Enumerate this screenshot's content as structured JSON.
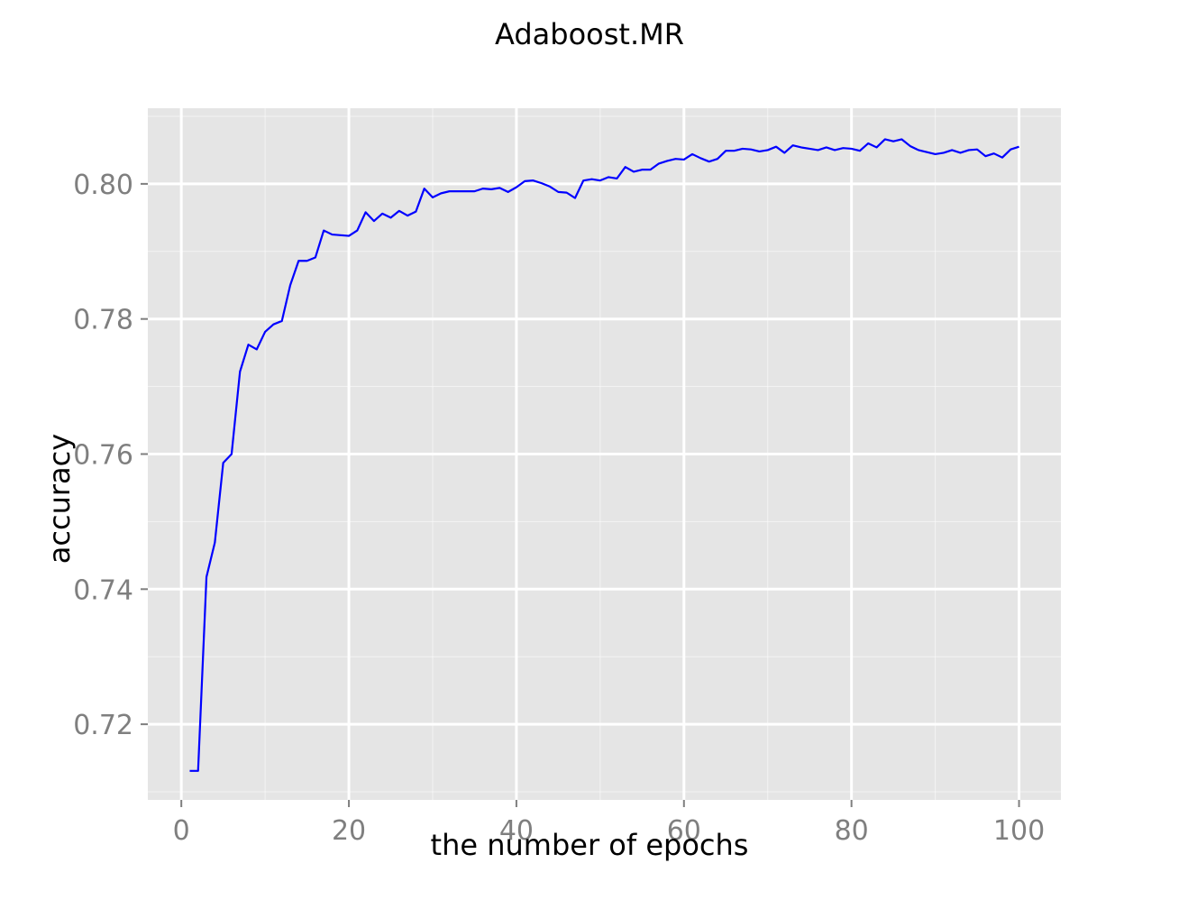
{
  "chart_data": {
    "type": "line",
    "title": "Adaboost.MR",
    "xlabel": "the number of epochs",
    "ylabel": "accuracy",
    "xlim": [
      -4,
      105
    ],
    "ylim": [
      0.7088,
      0.8112
    ],
    "xticks": [
      0,
      20,
      40,
      60,
      80,
      100
    ],
    "xtick_labels": [
      "0",
      "20",
      "40",
      "60",
      "80",
      "100"
    ],
    "yticks": [
      0.72,
      0.74,
      0.76,
      0.78,
      0.8
    ],
    "ytick_labels": [
      "0.72",
      "0.74",
      "0.76",
      "0.78",
      "0.80"
    ],
    "grid": true,
    "legend": "none",
    "colors": {
      "panel": "#e5e5e5",
      "grid": "#ffffff",
      "line": "#0000ff"
    },
    "series": [
      {
        "x": [
          1,
          2,
          3,
          4,
          5,
          6,
          7,
          8,
          9,
          10,
          11,
          12,
          13,
          14,
          15,
          16,
          17,
          18,
          19,
          20,
          21,
          22,
          23,
          24,
          25,
          26,
          27,
          28,
          29,
          30,
          31,
          32,
          33,
          34,
          35,
          36,
          37,
          38,
          39,
          40,
          41,
          42,
          43,
          44,
          45,
          46,
          47,
          48,
          49,
          50,
          51,
          52,
          53,
          54,
          55,
          56,
          57,
          58,
          59,
          60,
          61,
          62,
          63,
          64,
          65,
          66,
          67,
          68,
          69,
          70,
          71,
          72,
          73,
          74,
          75,
          76,
          77,
          78,
          79,
          80,
          81,
          82,
          83,
          84,
          85,
          86,
          87,
          88,
          89,
          90,
          91,
          92,
          93,
          94,
          95,
          96,
          97,
          98,
          99,
          100
        ],
        "values": [
          0.7131,
          0.7131,
          0.7418,
          0.7469,
          0.7587,
          0.76,
          0.7722,
          0.7762,
          0.7755,
          0.7781,
          0.7792,
          0.7797,
          0.785,
          0.7886,
          0.7886,
          0.7891,
          0.7931,
          0.7925,
          0.7924,
          0.7923,
          0.7931,
          0.7958,
          0.7945,
          0.7956,
          0.795,
          0.796,
          0.7953,
          0.7959,
          0.7993,
          0.798,
          0.7986,
          0.7989,
          0.7989,
          0.7989,
          0.7989,
          0.7993,
          0.7992,
          0.7994,
          0.7988,
          0.7995,
          0.8004,
          0.8005,
          0.8001,
          0.7996,
          0.7988,
          0.7987,
          0.7979,
          0.8005,
          0.8007,
          0.8005,
          0.801,
          0.8008,
          0.8025,
          0.8018,
          0.8021,
          0.8021,
          0.803,
          0.8034,
          0.8037,
          0.8036,
          0.8044,
          0.8038,
          0.8033,
          0.8037,
          0.8049,
          0.8049,
          0.8052,
          0.8051,
          0.8048,
          0.805,
          0.8055,
          0.8046,
          0.8057,
          0.8054,
          0.8052,
          0.805,
          0.8054,
          0.805,
          0.8053,
          0.8052,
          0.8049,
          0.806,
          0.8054,
          0.8066,
          0.8063,
          0.8066,
          0.8056,
          0.805,
          0.8047,
          0.8044,
          0.8046,
          0.805,
          0.8046,
          0.805,
          0.8051,
          0.8041,
          0.8045,
          0.8039,
          0.8051,
          0.8055
        ]
      }
    ]
  }
}
